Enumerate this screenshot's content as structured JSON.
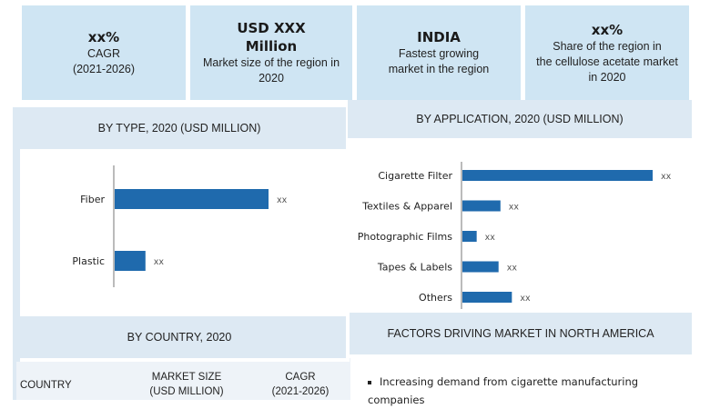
{
  "cards": [
    {
      "big": [
        "xx%"
      ],
      "small": [
        "CAGR",
        "(2021-2026)"
      ]
    },
    {
      "big": [
        "USD XXX",
        "Million"
      ],
      "small": [
        "Market size of the region in",
        "2020"
      ]
    },
    {
      "big": [
        "INDIA"
      ],
      "small": [
        "Fastest growing",
        "market in the region"
      ]
    },
    {
      "big": [
        "xx%"
      ],
      "small": [
        "Share of the region in",
        "the cellulose acetate market",
        "in 2020"
      ]
    }
  ],
  "panels": {
    "by_type_title": "BY TYPE, 2020 (USD MILLION)",
    "by_application_title": "BY APPLICATION, 2020 (USD MILLION)",
    "by_country_title": "BY COUNTRY, 2020",
    "factors_title": "FACTORS DRIVING MARKET IN NORTH AMERICA"
  },
  "country_table": {
    "columns": [
      [
        "COUNTRY"
      ],
      [
        "MARKET SIZE",
        "(USD MILLION)"
      ],
      [
        "CAGR",
        "(2021-2026)"
      ]
    ]
  },
  "drivers": [
    "Increasing demand from cigarette manufacturing companies"
  ],
  "colors": {
    "bar": "#1f6aad",
    "card_bg": "#cfe5f3",
    "header_bg": "#dde9f3"
  },
  "chart_data": [
    {
      "type": "bar",
      "orientation": "horizontal",
      "title": "BY TYPE, 2020 (USD MILLION)",
      "categories": [
        "Fiber",
        "Plastic"
      ],
      "values": [
        100,
        20
      ],
      "value_labels": [
        "xx",
        "xx"
      ],
      "value_scale": "relative"
    },
    {
      "type": "bar",
      "orientation": "horizontal",
      "title": "BY APPLICATION, 2020 (USD MILLION)",
      "categories": [
        "Cigarette Filter",
        "Textiles & Apparel",
        "Photographic Films",
        "Tapes & Labels",
        "Others"
      ],
      "values": [
        100,
        20,
        7.5,
        19,
        26
      ],
      "value_labels": [
        "xx",
        "xx",
        "xx",
        "xx",
        "xx"
      ],
      "value_scale": "relative"
    }
  ]
}
